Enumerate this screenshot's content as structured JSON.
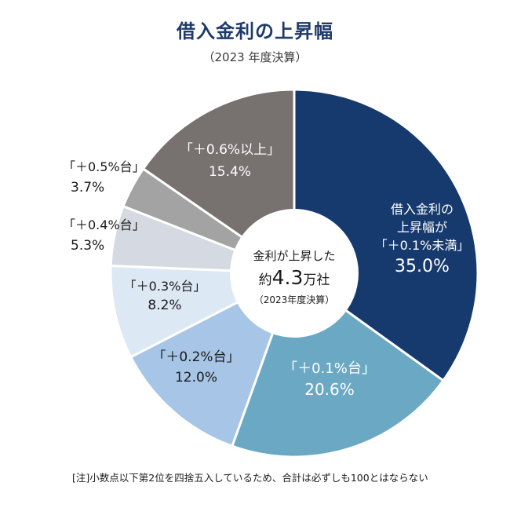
{
  "header": {
    "title": "借入金利の上昇幅",
    "subtitle": "（2023 年度決算）"
  },
  "center": {
    "line1": "金利が上昇した",
    "line2_prefix": "約",
    "line2_value": "4.3",
    "line2_suffix": "万社",
    "line3": "（2023年度決算）"
  },
  "note": "[注]小数点以下第2位を四捨五入しているため、合計は必ずしも100とはならない",
  "chart_data": {
    "type": "pie",
    "categories": [
      "借入金利の上昇幅が「＋0.1%未満」",
      "「＋0.1%台」",
      "「＋0.2%台」",
      "「＋0.3%台」",
      "「＋0.4%台」",
      "「＋0.5%台」",
      "「＋0.6%以上」"
    ],
    "values": [
      35.0,
      20.6,
      12.0,
      8.2,
      5.3,
      3.7,
      15.4
    ],
    "colors": [
      "#163a6e",
      "#6aa8c4",
      "#a7c5e6",
      "#dde8f5",
      "#d4d9e2",
      "#a3a3a3",
      "#777170"
    ],
    "labels": [
      {
        "lines": [
          "借入金利の",
          "上昇幅が",
          "「＋0.1%未満」"
        ],
        "value": "35.0%",
        "color": "#ffffff"
      },
      {
        "lines": [
          "「＋0.1%台」"
        ],
        "value": "20.6%",
        "color": "#ffffff"
      },
      {
        "lines": [
          "「＋0.2%台」"
        ],
        "value": "12.0%",
        "color": "#1a1a1a"
      },
      {
        "lines": [
          "「＋0.3%台」"
        ],
        "value": "8.2%",
        "color": "#1a1a1a"
      },
      {
        "lines": [
          "「＋0.4%台」"
        ],
        "value": "5.3%",
        "color": "#1a1a1a"
      },
      {
        "lines": [
          "「＋0.5%台」"
        ],
        "value": "3.7%",
        "color": "#1a1a1a"
      },
      {
        "lines": [
          "「＋0.6%以上」"
        ],
        "value": "15.4%",
        "color": "#ffffff"
      }
    ]
  }
}
